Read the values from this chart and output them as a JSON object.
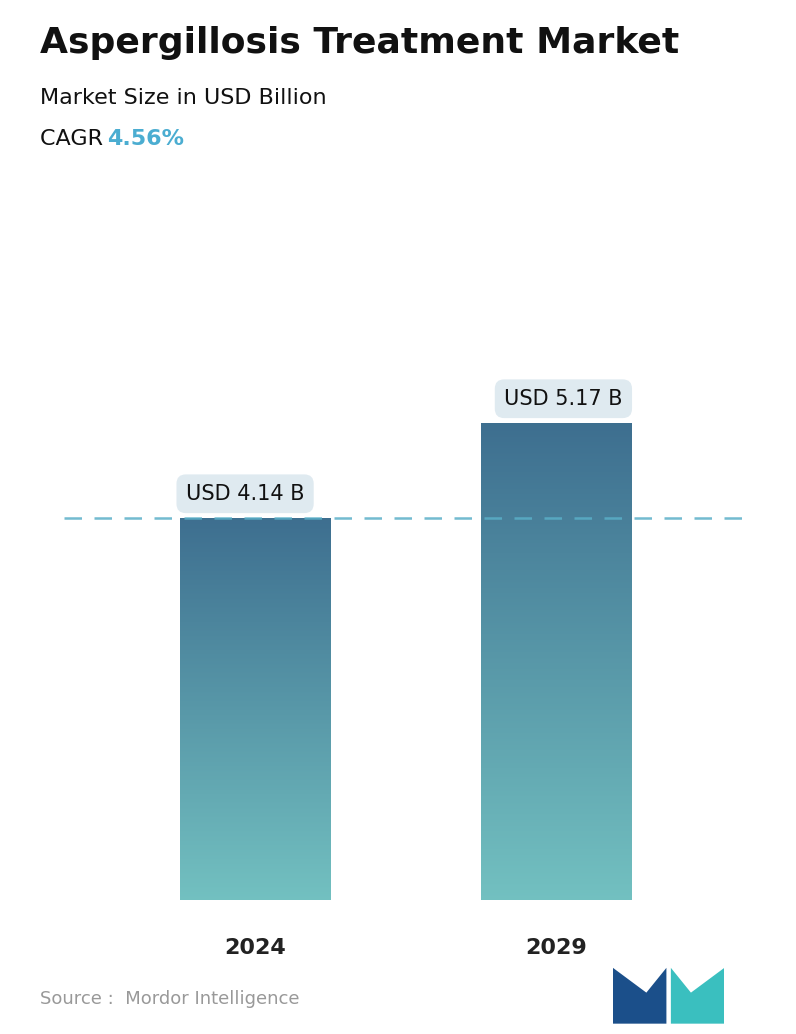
{
  "title": "Aspergillosis Treatment Market",
  "subtitle": "Market Size in USD Billion",
  "cagr_label": "CAGR",
  "cagr_value": "4.56%",
  "cagr_color": "#4BADD1",
  "years": [
    "2024",
    "2029"
  ],
  "values": [
    4.14,
    5.17
  ],
  "labels": [
    "USD 4.14 B",
    "USD 5.17 B"
  ],
  "bar_color_top": "#3D6E8F",
  "bar_color_bottom": "#72C0C0",
  "dashed_line_color": "#5AAFC8",
  "dashed_line_value": 4.14,
  "source_text": "Source :  Mordor Intelligence",
  "source_color": "#999999",
  "background_color": "#ffffff",
  "title_fontsize": 26,
  "subtitle_fontsize": 16,
  "cagr_fontsize": 16,
  "label_fontsize": 15,
  "year_fontsize": 16,
  "source_fontsize": 13,
  "x_positions": [
    0.28,
    0.72
  ],
  "bar_width": 0.22,
  "y_max": 6.5
}
